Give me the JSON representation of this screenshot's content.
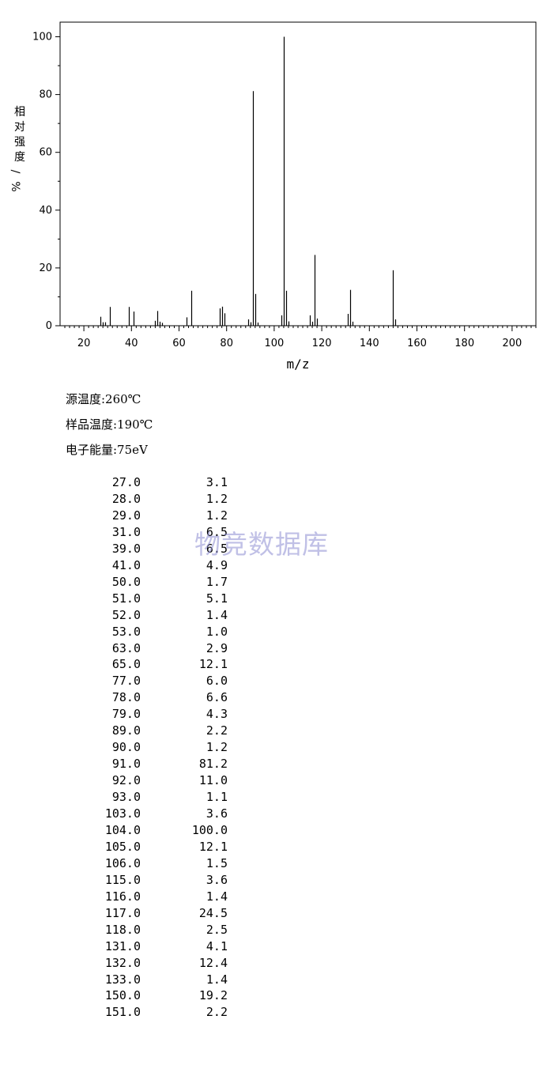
{
  "chart_data": {
    "type": "bar",
    "xlabel": "m/z",
    "ylabel": "相对强度/%",
    "xlim": [
      10,
      210
    ],
    "ylim": [
      0,
      100
    ],
    "x_ticks": [
      20,
      40,
      60,
      80,
      100,
      120,
      140,
      160,
      180,
      200
    ],
    "y_ticks": [
      0,
      20,
      40,
      60,
      80,
      100
    ],
    "grid": false,
    "peaks": [
      {
        "mz": 27.0,
        "intensity": 3.1
      },
      {
        "mz": 28.0,
        "intensity": 1.2
      },
      {
        "mz": 29.0,
        "intensity": 1.2
      },
      {
        "mz": 31.0,
        "intensity": 6.5
      },
      {
        "mz": 39.0,
        "intensity": 6.5
      },
      {
        "mz": 41.0,
        "intensity": 4.9
      },
      {
        "mz": 50.0,
        "intensity": 1.7
      },
      {
        "mz": 51.0,
        "intensity": 5.1
      },
      {
        "mz": 52.0,
        "intensity": 1.4
      },
      {
        "mz": 53.0,
        "intensity": 1.0
      },
      {
        "mz": 63.0,
        "intensity": 2.9
      },
      {
        "mz": 65.0,
        "intensity": 12.1
      },
      {
        "mz": 77.0,
        "intensity": 6.0
      },
      {
        "mz": 78.0,
        "intensity": 6.6
      },
      {
        "mz": 79.0,
        "intensity": 4.3
      },
      {
        "mz": 89.0,
        "intensity": 2.2
      },
      {
        "mz": 90.0,
        "intensity": 1.2
      },
      {
        "mz": 91.0,
        "intensity": 81.2
      },
      {
        "mz": 92.0,
        "intensity": 11.0
      },
      {
        "mz": 93.0,
        "intensity": 1.1
      },
      {
        "mz": 103.0,
        "intensity": 3.6
      },
      {
        "mz": 104.0,
        "intensity": 100.0
      },
      {
        "mz": 105.0,
        "intensity": 12.1
      },
      {
        "mz": 106.0,
        "intensity": 1.5
      },
      {
        "mz": 115.0,
        "intensity": 3.6
      },
      {
        "mz": 116.0,
        "intensity": 1.4
      },
      {
        "mz": 117.0,
        "intensity": 24.5
      },
      {
        "mz": 118.0,
        "intensity": 2.5
      },
      {
        "mz": 131.0,
        "intensity": 4.1
      },
      {
        "mz": 132.0,
        "intensity": 12.4
      },
      {
        "mz": 133.0,
        "intensity": 1.4
      },
      {
        "mz": 150.0,
        "intensity": 19.2
      },
      {
        "mz": 151.0,
        "intensity": 2.2
      }
    ]
  },
  "conditions": {
    "source_temp": "源温度:260℃",
    "sample_temp": "样品温度:190℃",
    "electron_energy": "电子能量:75eV"
  },
  "peak_table": [
    {
      "mz": "27.0",
      "intensity": "3.1"
    },
    {
      "mz": "28.0",
      "intensity": "1.2"
    },
    {
      "mz": "29.0",
      "intensity": "1.2"
    },
    {
      "mz": "31.0",
      "intensity": "6.5"
    },
    {
      "mz": "39.0",
      "intensity": "6.5"
    },
    {
      "mz": "41.0",
      "intensity": "4.9"
    },
    {
      "mz": "50.0",
      "intensity": "1.7"
    },
    {
      "mz": "51.0",
      "intensity": "5.1"
    },
    {
      "mz": "52.0",
      "intensity": "1.4"
    },
    {
      "mz": "53.0",
      "intensity": "1.0"
    },
    {
      "mz": "63.0",
      "intensity": "2.9"
    },
    {
      "mz": "65.0",
      "intensity": "12.1"
    },
    {
      "mz": "77.0",
      "intensity": "6.0"
    },
    {
      "mz": "78.0",
      "intensity": "6.6"
    },
    {
      "mz": "79.0",
      "intensity": "4.3"
    },
    {
      "mz": "89.0",
      "intensity": "2.2"
    },
    {
      "mz": "90.0",
      "intensity": "1.2"
    },
    {
      "mz": "91.0",
      "intensity": "81.2"
    },
    {
      "mz": "92.0",
      "intensity": "11.0"
    },
    {
      "mz": "93.0",
      "intensity": "1.1"
    },
    {
      "mz": "103.0",
      "intensity": "3.6"
    },
    {
      "mz": "104.0",
      "intensity": "100.0"
    },
    {
      "mz": "105.0",
      "intensity": "12.1"
    },
    {
      "mz": "106.0",
      "intensity": "1.5"
    },
    {
      "mz": "115.0",
      "intensity": "3.6"
    },
    {
      "mz": "116.0",
      "intensity": "1.4"
    },
    {
      "mz": "117.0",
      "intensity": "24.5"
    },
    {
      "mz": "118.0",
      "intensity": "2.5"
    },
    {
      "mz": "131.0",
      "intensity": "4.1"
    },
    {
      "mz": "132.0",
      "intensity": "12.4"
    },
    {
      "mz": "133.0",
      "intensity": "1.4"
    },
    {
      "mz": "150.0",
      "intensity": "19.2"
    },
    {
      "mz": "151.0",
      "intensity": "2.2"
    }
  ],
  "watermark": "物竞数据库"
}
